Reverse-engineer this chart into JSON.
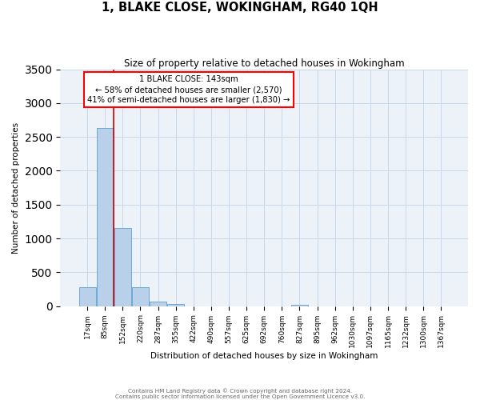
{
  "title": "1, BLAKE CLOSE, WOKINGHAM, RG40 1QH",
  "subtitle": "Size of property relative to detached houses in Wokingham",
  "xlabel": "Distribution of detached houses by size in Wokingham",
  "ylabel": "Number of detached properties",
  "footer_line1": "Contains HM Land Registry data © Crown copyright and database right 2024.",
  "footer_line2": "Contains public sector information licensed under the Open Government Licence v3.0.",
  "bin_labels": [
    "17sqm",
    "85sqm",
    "152sqm",
    "220sqm",
    "287sqm",
    "355sqm",
    "422sqm",
    "490sqm",
    "557sqm",
    "625sqm",
    "692sqm",
    "760sqm",
    "827sqm",
    "895sqm",
    "962sqm",
    "1030sqm",
    "1097sqm",
    "1165sqm",
    "1232sqm",
    "1300sqm",
    "1367sqm"
  ],
  "bar_values": [
    280,
    2630,
    1150,
    280,
    70,
    30,
    0,
    0,
    0,
    0,
    0,
    0,
    20,
    0,
    0,
    0,
    0,
    0,
    0,
    0,
    0
  ],
  "bar_color": "#b8d0ea",
  "bar_edge_color": "#6aaad4",
  "ylim": [
    0,
    3500
  ],
  "yticks": [
    0,
    500,
    1000,
    1500,
    2000,
    2500,
    3000,
    3500
  ],
  "annotation_title": "1 BLAKE CLOSE: 143sqm",
  "annotation_line1": "← 58% of detached houses are smaller (2,570)",
  "annotation_line2": "41% of semi-detached houses are larger (1,830) →",
  "vline_color": "#cc0000",
  "grid_color": "#c8d8e8",
  "bg_color": "#edf2f8"
}
